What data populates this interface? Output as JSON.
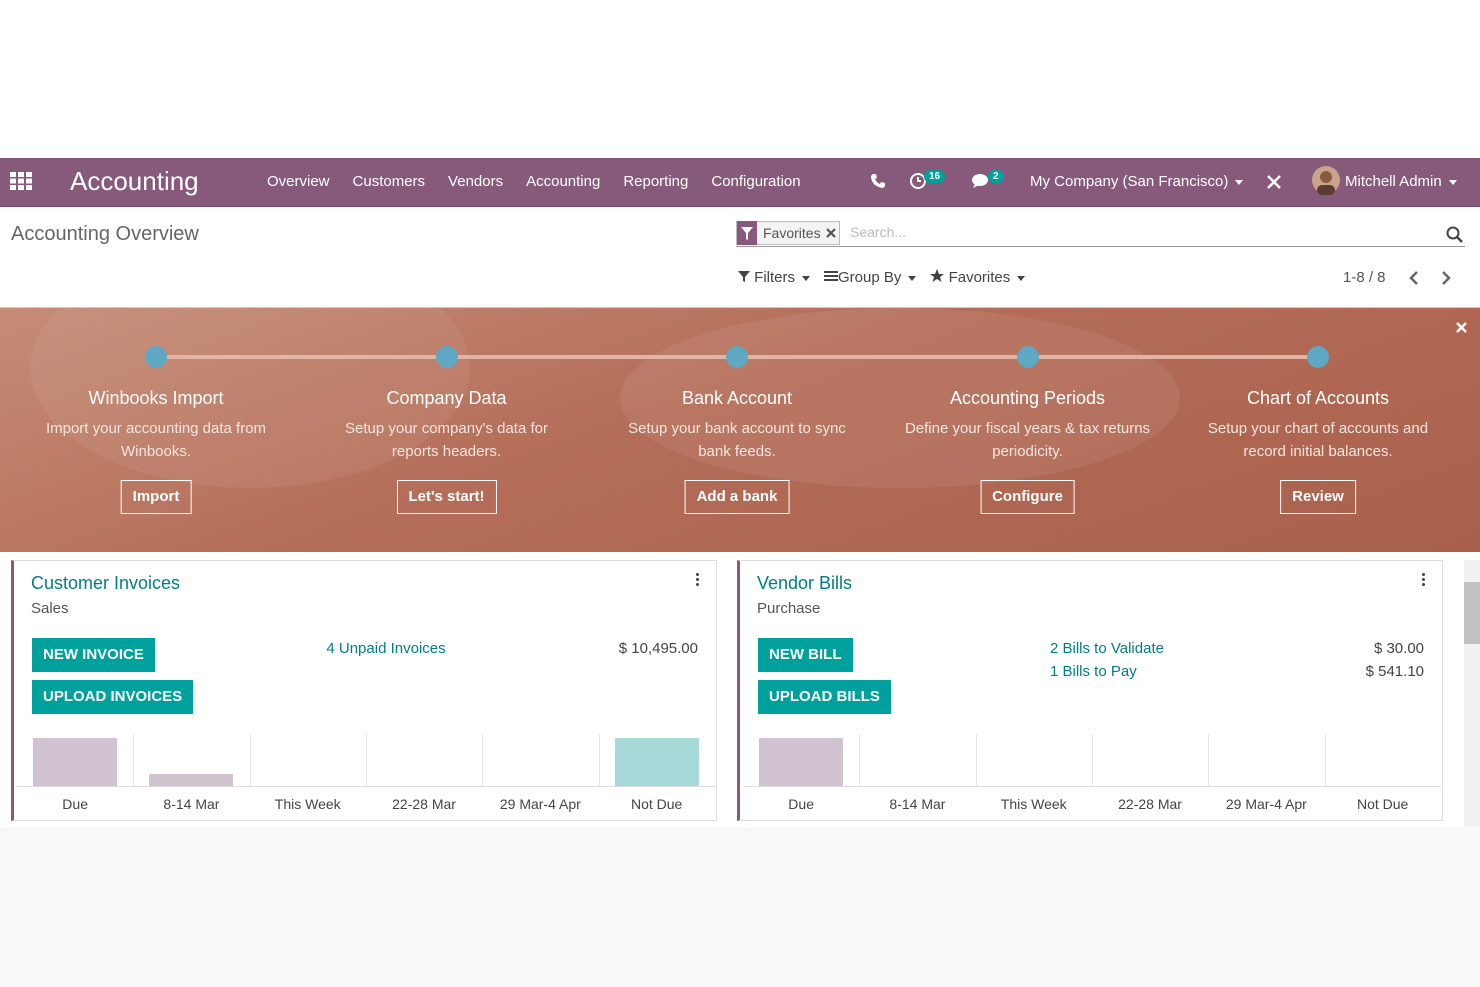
{
  "navbar": {
    "app": "Accounting",
    "menu": [
      "Overview",
      "Customers",
      "Vendors",
      "Accounting",
      "Reporting",
      "Configuration"
    ],
    "activity_count": 16,
    "message_count": 2,
    "company": "My Company (San Francisco)",
    "user": "Mitchell Admin"
  },
  "control_panel": {
    "breadcrumb": "Accounting Overview",
    "facet": "Favorites",
    "search_placeholder": "Search...",
    "filters": "Filters",
    "group_by": "Group By",
    "favorites": "Favorites",
    "pager": "1-8 / 8"
  },
  "onboarding": {
    "steps": [
      {
        "title": "Winbooks Import",
        "description": "Import your accounting data from Winbooks.",
        "button": "Import"
      },
      {
        "title": "Company Data",
        "description": "Setup your company's data for reports headers.",
        "button": "Let's start!"
      },
      {
        "title": "Bank Account",
        "description": "Setup your bank account to sync bank feeds.",
        "button": "Add a bank"
      },
      {
        "title": "Accounting Periods",
        "description": "Define your fiscal years & tax returns periodicity.",
        "button": "Configure"
      },
      {
        "title": "Chart of Accounts",
        "description": "Setup your chart of accounts and record initial balances.",
        "button": "Review"
      }
    ]
  },
  "dashboards": [
    {
      "title": "Customer Invoices",
      "subtitle": "Sales",
      "buttons": [
        "NEW INVOICE",
        "UPLOAD INVOICES"
      ],
      "links": [
        {
          "label": "4 Unpaid Invoices",
          "amount": "$ 10,495.00"
        }
      ],
      "graph": {
        "categories": [
          "Due",
          "8-14 Mar",
          "This Week",
          "22-28 Mar",
          "29 Mar-4 Apr",
          "Not Due"
        ],
        "values": [
          4,
          1,
          0,
          0,
          0,
          4
        ],
        "colors": [
          "#d1c4d0",
          "#d1c4d0",
          "#d1c4d0",
          "#d1c4d0",
          "#d1c4d0",
          "#a6d9d8"
        ]
      }
    },
    {
      "title": "Vendor Bills",
      "subtitle": "Purchase",
      "buttons": [
        "NEW BILL",
        "UPLOAD BILLS"
      ],
      "links": [
        {
          "label": "2 Bills to Validate",
          "amount": "$ 30.00"
        },
        {
          "label": "1 Bills to Pay",
          "amount": "$ 541.10"
        }
      ],
      "graph": {
        "categories": [
          "Due",
          "8-14 Mar",
          "This Week",
          "22-28 Mar",
          "29 Mar-4 Apr",
          "Not Due"
        ],
        "values": [
          4,
          0,
          0,
          0,
          0,
          0
        ],
        "colors": [
          "#d1c4d0",
          "#d1c4d0",
          "#d1c4d0",
          "#d1c4d0",
          "#d1c4d0",
          "#d1c4d0"
        ]
      }
    }
  ]
}
